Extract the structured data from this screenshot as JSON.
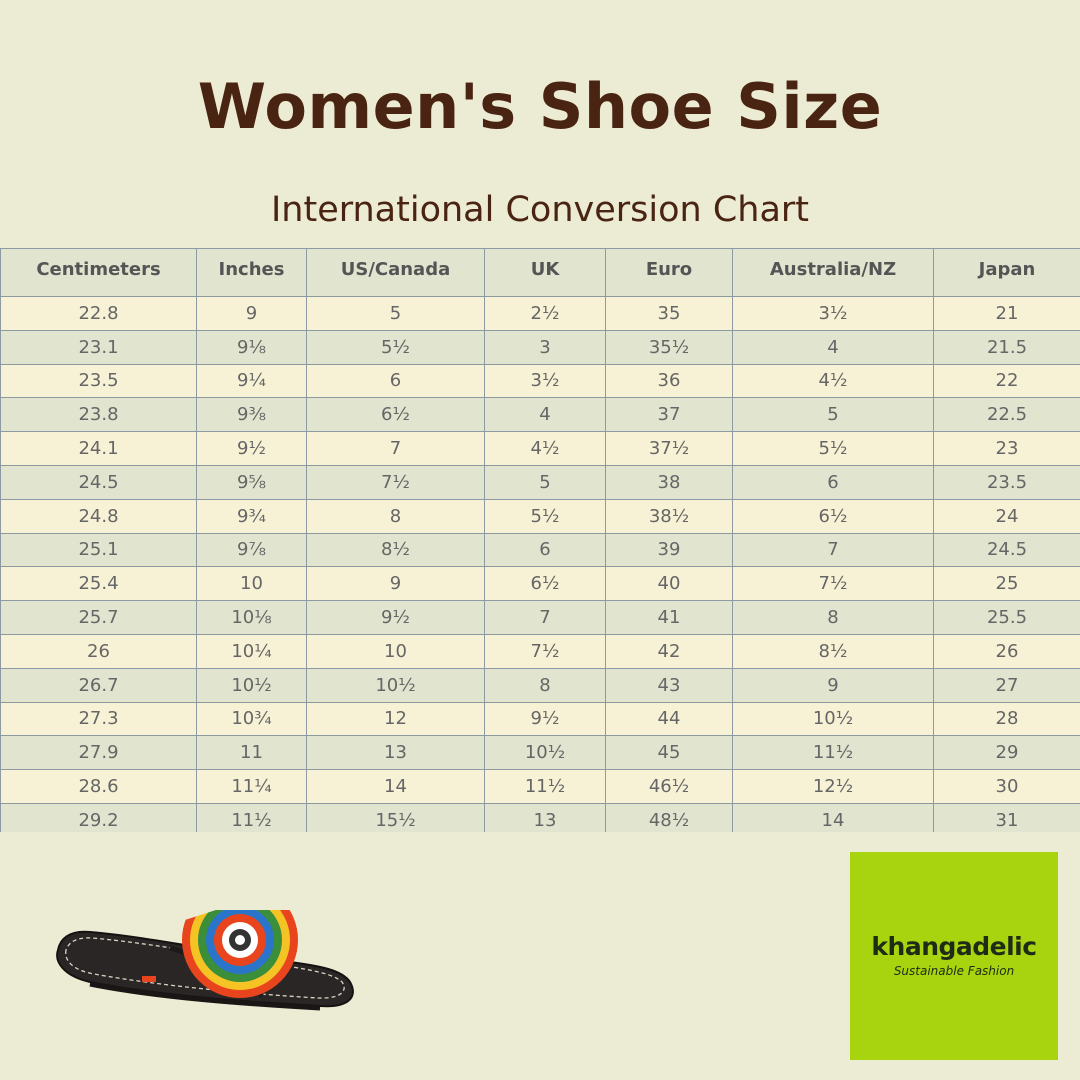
{
  "title": "Women's Shoe Size",
  "subtitle": "International Conversion Chart",
  "table": {
    "headers": [
      "Centimeters",
      "Inches",
      "US/Canada",
      "UK",
      "Euro",
      "Australia/NZ",
      "Japan"
    ],
    "rows": [
      [
        "22.8",
        "9",
        "5",
        "2½",
        "35",
        "3½",
        "21"
      ],
      [
        "23.1",
        "9⅛",
        "5½",
        "3",
        "35½",
        "4",
        "21.5"
      ],
      [
        "23.5",
        "9¼",
        "6",
        "3½",
        "36",
        "4½",
        "22"
      ],
      [
        "23.8",
        "9⅜",
        "6½",
        "4",
        "37",
        "5",
        "22.5"
      ],
      [
        "24.1",
        "9½",
        "7",
        "4½",
        "37½",
        "5½",
        "23"
      ],
      [
        "24.5",
        "9⅝",
        "7½",
        "5",
        "38",
        "6",
        "23.5"
      ],
      [
        "24.8",
        "9¾",
        "8",
        "5½",
        "38½",
        "6½",
        "24"
      ],
      [
        "25.1",
        "9⅞",
        "8½",
        "6",
        "39",
        "7",
        "24.5"
      ],
      [
        "25.4",
        "10",
        "9",
        "6½",
        "40",
        "7½",
        "25"
      ],
      [
        "25.7",
        "10⅛",
        "9½",
        "7",
        "41",
        "8",
        "25.5"
      ],
      [
        "26",
        "10¼",
        "10",
        "7½",
        "42",
        "8½",
        "26"
      ],
      [
        "26.7",
        "10½",
        "10½",
        "8",
        "43",
        "9",
        "27"
      ],
      [
        "27.3",
        "10¾",
        "12",
        "9½",
        "44",
        "10½",
        "28"
      ],
      [
        "27.9",
        "11",
        "13",
        "10½",
        "45",
        "11½",
        "29"
      ],
      [
        "28.6",
        "11¼",
        "14",
        "11½",
        "46½",
        "12½",
        "30"
      ],
      [
        "29.2",
        "11½",
        "15½",
        "13",
        "48½",
        "14",
        "31"
      ]
    ]
  },
  "logo": {
    "name": "khangadelic",
    "tagline": "Sustainable Fashion",
    "background_color": "#a8d30f"
  },
  "colors": {
    "background": "#ecebd3",
    "title": "#4a2412",
    "row_light": "#f7f2d6",
    "row_dark": "#e1e4cf",
    "grid": "#8e9aa3"
  },
  "product_image": "beaded-sandal-icon"
}
